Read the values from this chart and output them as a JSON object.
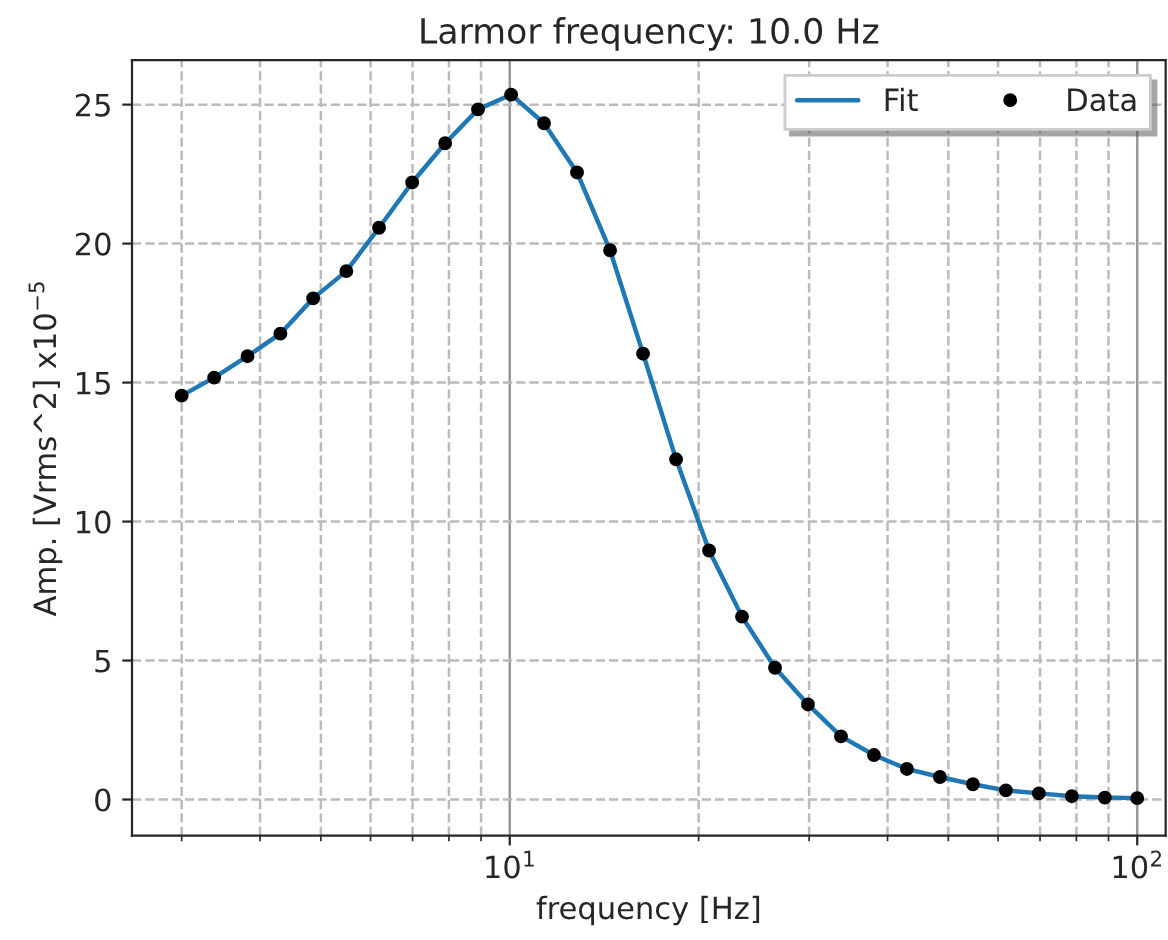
{
  "chart_data": {
    "type": "line",
    "title": "Larmor frequency: 10.0 Hz",
    "xlabel": "frequency [Hz]",
    "ylabel": "Amp. [Vrms^2] x10$^{−5}$",
    "log": "x",
    "grid": true,
    "legend": "top right",
    "xlim": [
      2.5,
      111
    ],
    "xticks": [
      {
        "value": 10,
        "label": "10$^{1}$"
      },
      {
        "value": 100,
        "label": "10$^{2}$"
      }
    ],
    "ylim": [
      -1.3,
      26.6
    ],
    "yticks": [
      0,
      5,
      10,
      15,
      20,
      25
    ],
    "series": [
      {
        "name": "Fit",
        "color": "#1f77b4",
        "marker": "none",
        "line_style": "solid",
        "x": [
          3,
          3.38,
          3.82,
          4.31,
          4.86,
          5.49,
          6.19,
          6.99,
          7.89,
          8.9,
          10.05,
          11.34,
          12.8,
          14.45,
          16.31,
          18.41,
          20.78,
          23.45,
          26.47,
          29.87,
          33.72,
          38.06,
          42.95,
          48.48,
          54.72,
          61.76,
          69.7,
          78.67,
          88.79,
          100
        ],
        "values": [
          14.53,
          15.18,
          15.95,
          16.76,
          18.03,
          19.01,
          20.57,
          22.2,
          23.61,
          24.83,
          25.36,
          24.33,
          22.56,
          19.76,
          16.04,
          12.24,
          8.96,
          6.58,
          4.74,
          3.42,
          2.27,
          1.6,
          1.1,
          0.81,
          0.55,
          0.33,
          0.22,
          0.12,
          0.07,
          0.05
        ]
      },
      {
        "name": "Data",
        "type": "scatter",
        "color": "#000000",
        "marker": "circle",
        "x": [
          3,
          3.38,
          3.82,
          4.31,
          4.86,
          5.49,
          6.19,
          6.99,
          7.89,
          8.9,
          10.05,
          11.34,
          12.8,
          14.45,
          16.31,
          18.41,
          20.78,
          23.45,
          26.47,
          29.87,
          33.72,
          38.06,
          42.95,
          48.48,
          54.72,
          61.76,
          69.7,
          78.67,
          88.79,
          100
        ],
        "values": [
          14.53,
          15.18,
          15.95,
          16.76,
          18.03,
          19.01,
          20.57,
          22.2,
          23.61,
          24.83,
          25.36,
          24.33,
          22.56,
          19.76,
          16.04,
          12.24,
          8.96,
          6.58,
          4.74,
          3.42,
          2.27,
          1.6,
          1.1,
          0.81,
          0.55,
          0.33,
          0.22,
          0.12,
          0.07,
          0.05
        ]
      }
    ]
  }
}
